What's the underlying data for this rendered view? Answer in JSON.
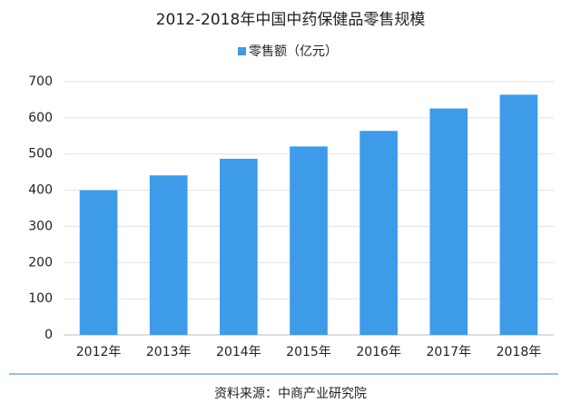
{
  "chart_data": {
    "type": "bar",
    "title": "2012-2018年中国中药保健品零售规模",
    "categories": [
      "2012年",
      "2013年",
      "2014年",
      "2015年",
      "2016年",
      "2017年",
      "2018年"
    ],
    "series": [
      {
        "name": "零售额（亿元）",
        "color": "#3d9bea",
        "values": [
          400,
          441,
          487,
          521,
          564,
          626,
          664
        ]
      }
    ],
    "ylim": [
      0,
      700
    ],
    "yticks": [
      0,
      100,
      200,
      300,
      400,
      500,
      600,
      700
    ],
    "grid": true,
    "legend": "top",
    "source": "资料来源：中商产业研究院"
  }
}
